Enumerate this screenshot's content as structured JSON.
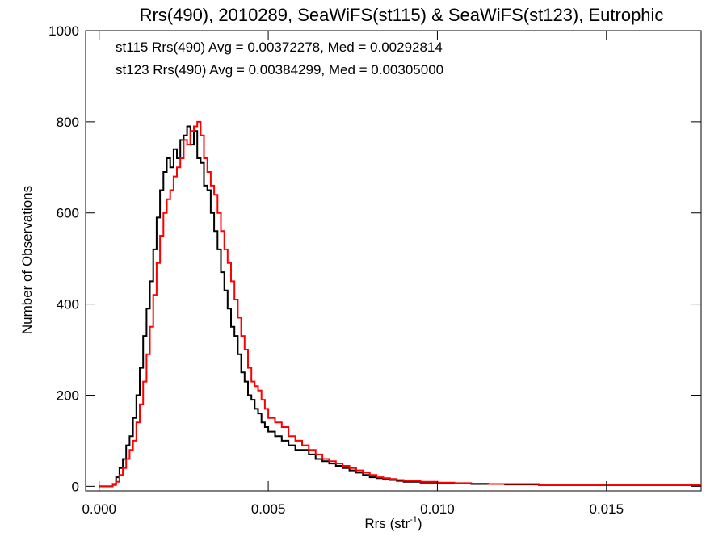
{
  "chart_data": {
    "type": "line",
    "title": "Rrs(490), 2010289, SeaWiFS(st115) & SeaWiFS(st123), Eutrophic",
    "xlabel_base": "Rrs (str",
    "xlabel_sup": "-1",
    "xlabel_close": ")",
    "ylabel": "Number of Observations",
    "xlim": [
      -0.0004,
      0.0178
    ],
    "ylim": [
      -10,
      1000
    ],
    "xticks": [
      0.0,
      0.005,
      0.01,
      0.015
    ],
    "xtick_labels": [
      "0.000",
      "0.005",
      "0.010",
      "0.015"
    ],
    "yticks": [
      0,
      200,
      400,
      600,
      800,
      1000
    ],
    "ytick_labels": [
      "0",
      "200",
      "400",
      "600",
      "800",
      "1000"
    ],
    "grid": false,
    "legend_placement": "top-left",
    "series": [
      {
        "name": "st115",
        "label": "st115 Rrs(490) Avg = 0.00372278, Med = 0.00292814",
        "color": "#000000",
        "x": [
          0.0,
          0.0004,
          0.0005,
          0.0006,
          0.0007,
          0.0008,
          0.0009,
          0.001,
          0.0011,
          0.0012,
          0.0013,
          0.0014,
          0.0015,
          0.0016,
          0.0017,
          0.0018,
          0.0019,
          0.002,
          0.0021,
          0.0022,
          0.0023,
          0.0024,
          0.0025,
          0.0026,
          0.0027,
          0.0028,
          0.0029,
          0.003,
          0.0031,
          0.0032,
          0.0033,
          0.0034,
          0.0035,
          0.0036,
          0.0037,
          0.0038,
          0.0039,
          0.004,
          0.0041,
          0.0042,
          0.0043,
          0.0044,
          0.0045,
          0.0046,
          0.0047,
          0.0048,
          0.0049,
          0.005,
          0.0052,
          0.0054,
          0.0056,
          0.0058,
          0.006,
          0.0062,
          0.0064,
          0.0066,
          0.0068,
          0.007,
          0.0072,
          0.0074,
          0.0076,
          0.0078,
          0.008,
          0.0082,
          0.0084,
          0.0086,
          0.0088,
          0.009,
          0.0095,
          0.01,
          0.0105,
          0.011,
          0.0115,
          0.012,
          0.0125,
          0.013,
          0.0135,
          0.014,
          0.0145,
          0.015,
          0.0155,
          0.016,
          0.0165,
          0.017,
          0.0175,
          0.0178
        ],
        "y": [
          0,
          5,
          20,
          40,
          60,
          90,
          110,
          150,
          200,
          260,
          330,
          390,
          450,
          520,
          590,
          650,
          690,
          720,
          700,
          740,
          720,
          760,
          770,
          790,
          750,
          780,
          720,
          710,
          660,
          650,
          600,
          560,
          520,
          470,
          430,
          390,
          350,
          330,
          290,
          250,
          230,
          200,
          190,
          170,
          160,
          140,
          130,
          120,
          110,
          100,
          90,
          80,
          80,
          70,
          60,
          55,
          50,
          45,
          40,
          35,
          30,
          25,
          20,
          18,
          16,
          14,
          12,
          10,
          8,
          7,
          6,
          5,
          5,
          4,
          4,
          3,
          3,
          3,
          3,
          3,
          3,
          3,
          3,
          3,
          3,
          3
        ]
      },
      {
        "name": "st123",
        "label": "st123 Rrs(490) Avg = 0.00384299, Med = 0.00305000",
        "color": "#ff0000",
        "x": [
          0.0,
          0.0004,
          0.0005,
          0.0006,
          0.0007,
          0.0008,
          0.0009,
          0.001,
          0.0011,
          0.0012,
          0.0013,
          0.0014,
          0.0015,
          0.0016,
          0.0017,
          0.0018,
          0.0019,
          0.002,
          0.0021,
          0.0022,
          0.0023,
          0.0024,
          0.0025,
          0.0026,
          0.0027,
          0.0028,
          0.0029,
          0.003,
          0.0031,
          0.0032,
          0.0033,
          0.0034,
          0.0035,
          0.0036,
          0.0037,
          0.0038,
          0.0039,
          0.004,
          0.0041,
          0.0042,
          0.0043,
          0.0044,
          0.0045,
          0.0046,
          0.0047,
          0.0048,
          0.0049,
          0.005,
          0.0052,
          0.0054,
          0.0056,
          0.0058,
          0.006,
          0.0062,
          0.0064,
          0.0066,
          0.0068,
          0.007,
          0.0072,
          0.0074,
          0.0076,
          0.0078,
          0.008,
          0.0082,
          0.0084,
          0.0086,
          0.0088,
          0.009,
          0.0095,
          0.01,
          0.0105,
          0.011,
          0.0115,
          0.012,
          0.0125,
          0.013,
          0.0135,
          0.014,
          0.0145,
          0.015,
          0.0155,
          0.016,
          0.0165,
          0.017,
          0.0175,
          0.0178
        ],
        "y": [
          0,
          3,
          10,
          25,
          40,
          60,
          80,
          100,
          140,
          180,
          230,
          290,
          350,
          420,
          490,
          550,
          600,
          630,
          650,
          680,
          700,
          720,
          760,
          750,
          780,
          790,
          800,
          770,
          720,
          690,
          660,
          640,
          600,
          560,
          520,
          490,
          450,
          410,
          370,
          330,
          300,
          260,
          230,
          220,
          210,
          190,
          170,
          150,
          140,
          130,
          110,
          100,
          90,
          80,
          70,
          60,
          55,
          50,
          45,
          40,
          35,
          30,
          25,
          20,
          18,
          16,
          14,
          12,
          10,
          8,
          7,
          6,
          5,
          5,
          5,
          4,
          4,
          4,
          4,
          4,
          4,
          4,
          4,
          4,
          4,
          4
        ]
      }
    ]
  }
}
